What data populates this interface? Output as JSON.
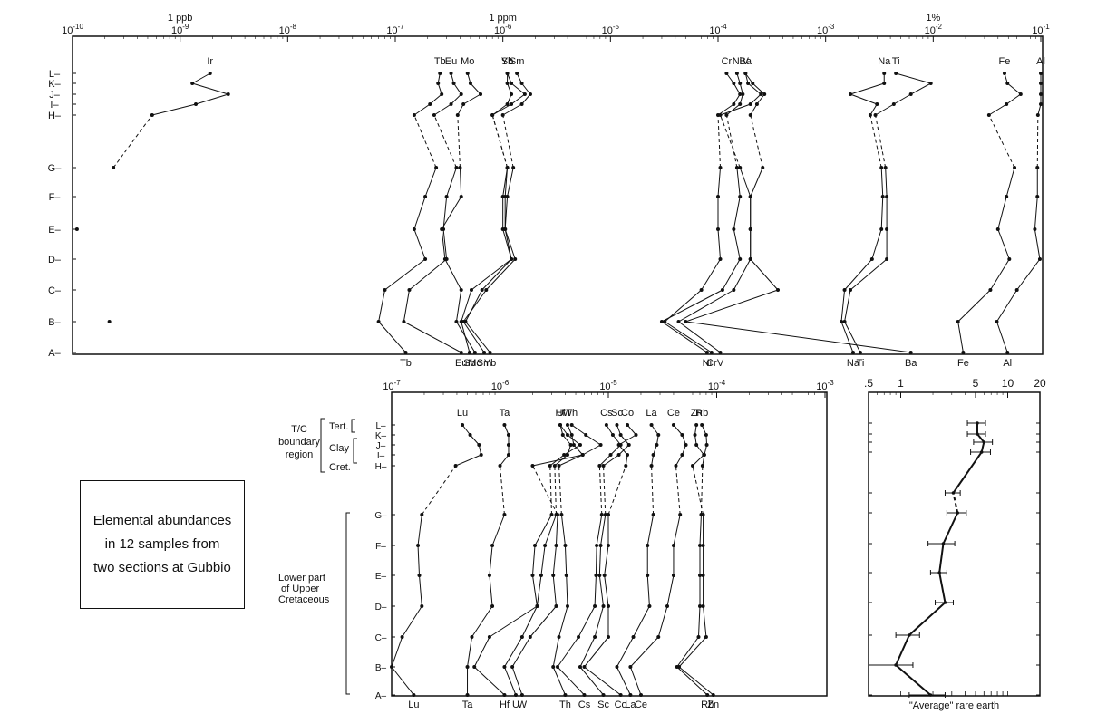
{
  "caption": {
    "line1": "Elemental abundances",
    "line2": "in 12 samples from",
    "line3": "two sections at Gubbio"
  },
  "region_labels": {
    "tc": [
      "T/C",
      "boundary",
      "region"
    ],
    "tert": "Tert.",
    "clay": "Clay",
    "cret": "Cret.",
    "lower": [
      "Lower part",
      "of Upper",
      "Cretaceous"
    ]
  },
  "samples": [
    "A",
    "B",
    "C",
    "D",
    "E",
    "F",
    "G",
    "H",
    "I",
    "J",
    "K",
    "L"
  ],
  "chart_data": [
    {
      "type": "line",
      "panel": "top",
      "xscale": "log",
      "xlim": [
        1e-10,
        0.1
      ],
      "x_ticks": [
        "10^-10",
        "10^-9",
        "10^-8",
        "10^-7",
        "10^-6",
        "10^-5",
        "10^-4",
        "10^-3",
        "10^-2",
        "10^-1"
      ],
      "x_tick_values": [
        1e-10,
        1e-09,
        1e-08,
        1e-07,
        1e-06,
        1e-05,
        0.0001,
        0.001,
        0.01,
        0.1
      ],
      "top_labels": [
        {
          "text": "1 ppb",
          "value": 1e-09
        },
        {
          "text": "1 ppm",
          "value": 1e-06
        },
        {
          "text": "1%",
          "value": 0.01
        }
      ],
      "y_ticks": [
        "A",
        "B",
        "C",
        "D",
        "E",
        "F",
        "G",
        "H",
        "I",
        "J",
        "K",
        "L"
      ],
      "series": [
        {
          "name": "Ir",
          "values": [
            null,
            2.2e-10,
            null,
            null,
            1.1e-10,
            null,
            2.4e-10,
            5.5e-10,
            1.4e-09,
            2.8e-09,
            1.3e-09,
            1.9e-09
          ]
        },
        {
          "name": "Tb",
          "values": [
            1.25e-07,
            7e-08,
            8e-08,
            1.9e-07,
            1.5e-07,
            1.9e-07,
            2.4e-07,
            1.5e-07,
            2.1e-07,
            2.7e-07,
            2.5e-07,
            2.6e-07
          ]
        },
        {
          "name": "Eu",
          "values": [
            4.1e-07,
            1.2e-07,
            1.35e-07,
            3e-07,
            2.8e-07,
            3e-07,
            3.7e-07,
            2.3e-07,
            3.3e-07,
            4.1e-07,
            3.5e-07,
            3.3e-07
          ]
        },
        {
          "name": "Mo",
          "values": [
            5.5e-07,
            3.7e-07,
            4.1e-07,
            2.9e-07,
            2.7e-07,
            4.1e-07,
            4e-07,
            3.8e-07,
            4.3e-07,
            6.2e-07,
            5e-07,
            4.7e-07
          ]
        },
        {
          "name": "Sb",
          "values": [
            4.9e-07,
            4.1e-07,
            5.1e-07,
            1.2e-06,
            1e-06,
            1e-06,
            1.1e-06,
            8e-07,
            1.1e-06,
            1.2e-06,
            1.1e-06,
            1.1e-06
          ]
        },
        {
          "name": "Sm",
          "values": [
            6.7e-07,
            4.3e-07,
            7e-07,
            1.3e-06,
            1.05e-06,
            1.1e-06,
            1.25e-06,
            1e-06,
            1.5e-06,
            1.8e-06,
            1.5e-06,
            1.35e-06
          ]
        },
        {
          "name": "Yb",
          "values": [
            7.6e-07,
            4.5e-07,
            6.4e-07,
            1.2e-06,
            1.05e-06,
            1.05e-06,
            1.1e-06,
            8e-07,
            1.2e-06,
            1.6e-06,
            1.2e-06,
            1.1e-06
          ]
        },
        {
          "name": "Ni",
          "values": [
            7.9e-05,
            3e-05,
            0.00011,
            0.00016,
            0.00014,
            0.00016,
            0.00015,
            0.00012,
            0.00016,
            0.00017,
            0.00016,
            0.00015
          ]
        },
        {
          "name": "Cr",
          "values": [
            8.7e-05,
            3.2e-05,
            7e-05,
            0.000105,
            0.0001,
            0.0001,
            0.000105,
            0.0001,
            0.00014,
            0.00016,
            0.00014,
            0.00012
          ]
        },
        {
          "name": "V",
          "values": [
            0.000105,
            4.3e-05,
            0.00014,
            0.0002,
            0.0002,
            0.0002,
            0.00016,
            0.000105,
            0.0002,
            0.00025,
            0.00019,
            0.00018
          ]
        },
        {
          "name": "Ba",
          "values": [
            0.0062,
            5e-05,
            0.00036,
            0.0002,
            0.0002,
            0.0002,
            0.00026,
            0.0002,
            0.00023,
            0.00027,
            0.00021,
            0.00018
          ]
        },
        {
          "name": "Na",
          "values": [
            0.0018,
            0.0014,
            0.0015,
            0.0027,
            0.0033,
            0.0034,
            0.0033,
            0.0026,
            0.003,
            0.0017,
            0.0035,
            0.0035
          ]
        },
        {
          "name": "Ti",
          "values": [
            0.0021,
            0.0015,
            0.0017,
            0.0037,
            0.0037,
            0.0037,
            0.0036,
            0.0029,
            0.0043,
            0.0062,
            0.0095,
            0.0045
          ]
        },
        {
          "name": "Fe",
          "values": [
            0.019,
            0.017,
            0.034,
            0.051,
            0.04,
            0.048,
            0.057,
            0.033,
            0.048,
            0.065,
            0.049,
            0.046
          ]
        },
        {
          "name": "Al",
          "values": [
            0.049,
            0.039,
            0.06,
            0.098,
            0.088,
            0.093,
            0.093,
            0.094,
            0.11,
            0.108,
            0.105,
            0.107
          ]
        }
      ]
    },
    {
      "type": "line",
      "panel": "bottom-left",
      "xscale": "log",
      "xlim": [
        1e-07,
        0.001
      ],
      "x_ticks": [
        "10^-7",
        "10^-6",
        "10^-5",
        "10^-4",
        "10^-3"
      ],
      "x_tick_values": [
        1e-07,
        1e-06,
        1e-05,
        0.0001,
        0.001
      ],
      "y_ticks": [
        "A",
        "B",
        "C",
        "D",
        "E",
        "F",
        "G",
        "H",
        "I",
        "J",
        "K",
        "L"
      ],
      "series": [
        {
          "name": "Lu",
          "values": [
            1.6e-07,
            1e-07,
            1.25e-07,
            1.9e-07,
            1.8e-07,
            1.75e-07,
            1.9e-07,
            3.9e-07,
            6.7e-07,
            6.4e-07,
            5.3e-07,
            4.5e-07
          ]
        },
        {
          "name": "Ta",
          "values": [
            5e-07,
            5e-07,
            5.5e-07,
            8.5e-07,
            8e-07,
            8.5e-07,
            1.1e-06,
            1e-06,
            1.2e-06,
            1.2e-06,
            1.2e-06,
            1.1e-06
          ]
        },
        {
          "name": "Hf",
          "values": [
            1.1e-06,
            5.8e-07,
            8e-07,
            2.2e-06,
            2e-06,
            2.1e-06,
            3e-06,
            2.9e-06,
            3.9e-06,
            5.5e-06,
            4.2e-06,
            3.6e-06
          ]
        },
        {
          "name": "U",
          "values": [
            1.4e-06,
            1.1e-06,
            1.6e-06,
            2.2e-06,
            2.4e-06,
            2.6e-06,
            3.3e-06,
            3.2e-06,
            4.2e-06,
            4.5e-06,
            3.8e-06,
            3.6e-06
          ]
        },
        {
          "name": "W",
          "values": [
            1.6e-06,
            1.3e-06,
            1.9e-06,
            3.3e-06,
            3.1e-06,
            3.3e-06,
            3.4e-06,
            2e-06,
            5.8e-06,
            4.8e-06,
            4.6e-06,
            4.2e-06
          ]
        },
        {
          "name": "Th",
          "values": [
            4e-06,
            3.1e-06,
            3.5e-06,
            4.2e-06,
            4.1e-06,
            4e-06,
            3.7e-06,
            3.5e-06,
            5.8e-06,
            8.5e-06,
            6.2e-06,
            4.6e-06
          ]
        },
        {
          "name": "Cs",
          "values": [
            6e-06,
            3.4e-06,
            5.3e-06,
            7.5e-06,
            7.7e-06,
            7.8e-06,
            8.7e-06,
            8.3e-06,
            1.05e-05,
            1.3e-05,
            1.1e-05,
            9.6e-06
          ]
        },
        {
          "name": "Sc",
          "values": [
            9e-06,
            5.5e-06,
            7.5e-06,
            9e-06,
            8.3e-06,
            8.5e-06,
            9.4e-06,
            9e-06,
            1.25e-05,
            1.55e-05,
            1.3e-05,
            1.2e-05
          ]
        },
        {
          "name": "Co",
          "values": [
            1.3e-05,
            6e-06,
            1e-05,
            1e-05,
            9.2e-06,
            1e-05,
            1e-05,
            1.45e-05,
            1.5e-05,
            1.25e-05,
            1.8e-05,
            1.5e-05
          ]
        },
        {
          "name": "La",
          "values": [
            1.6e-05,
            1.2e-05,
            1.7e-05,
            2.4e-05,
            2.3e-05,
            2.3e-05,
            2.6e-05,
            2.5e-05,
            2.6e-05,
            2.8e-05,
            2.9e-05,
            2.5e-05
          ]
        },
        {
          "name": "Ce",
          "values": [
            2e-05,
            1.6e-05,
            2.9e-05,
            3.5e-05,
            4e-05,
            4e-05,
            4.6e-05,
            4.2e-05,
            4.8e-05,
            5.2e-05,
            4.8e-05,
            4e-05
          ]
        },
        {
          "name": "Rb",
          "values": [
            8.2e-05,
            4.3e-05,
            6.8e-05,
            7e-05,
            7e-05,
            7e-05,
            7.2e-05,
            7.4e-05,
            7.7e-05,
            8.1e-05,
            8e-05,
            7.3e-05
          ]
        },
        {
          "name": "Zn",
          "values": [
            9.3e-05,
            4.5e-05,
            8e-05,
            7.5e-05,
            7.5e-05,
            7.5e-05,
            7.5e-05,
            6e-05,
            7.6e-05,
            6.5e-05,
            6.3e-05,
            6.5e-05
          ]
        }
      ]
    },
    {
      "type": "line",
      "panel": "bottom-right",
      "xscale": "log",
      "xlim": [
        0.5,
        20
      ],
      "x_ticks": [
        ".5",
        "1",
        "5",
        "10",
        "20"
      ],
      "x_tick_values": [
        0.5,
        1,
        5,
        10,
        20
      ],
      "xlabel": "\"Average\" rare earth",
      "y_ticks": [
        "A",
        "B",
        "C",
        "D",
        "E",
        "F",
        "G",
        "H",
        "I",
        "J",
        "K",
        "L"
      ],
      "series": [
        {
          "name": "",
          "values": [
            1.9,
            0.9,
            1.2,
            2.6,
            2.3,
            2.5,
            3.4,
            3.1,
            5.7,
            6.0,
            5.2,
            5.2
          ],
          "error": [
            0.7,
            0.4,
            0.3,
            0.5,
            0.4,
            0.7,
            0.7,
            0.5,
            1.2,
            1.2,
            1.0,
            1.0
          ]
        }
      ]
    }
  ]
}
